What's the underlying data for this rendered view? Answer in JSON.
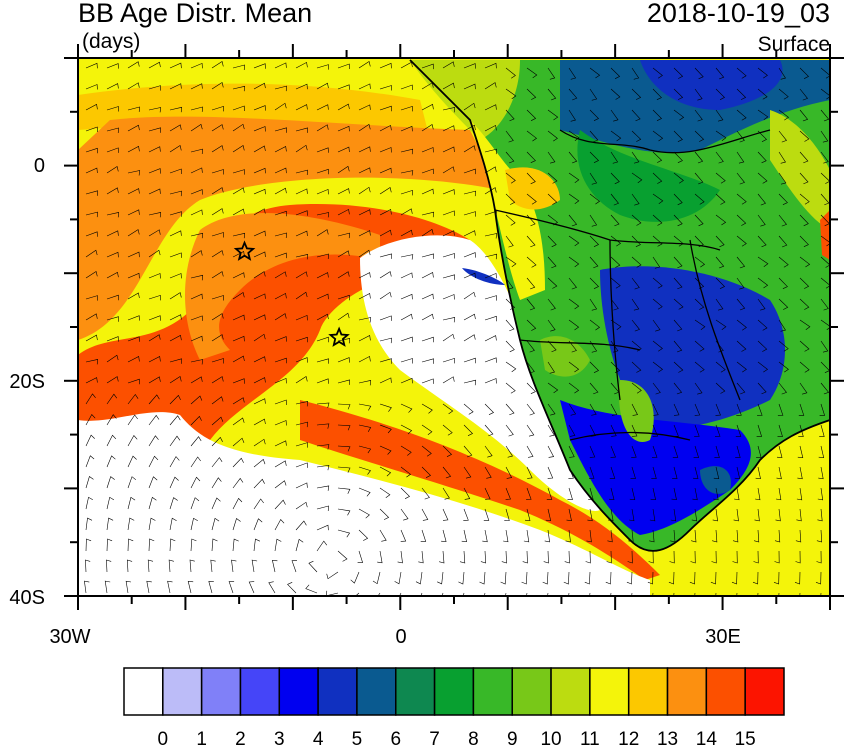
{
  "title": "BB Age Distr. Mean",
  "units": "(days)",
  "datetime": "2018-10-19_03",
  "level": "Surface",
  "lon_ticks": [
    {
      "label": "30W",
      "lon": -30
    },
    {
      "label": "0",
      "lon": 0
    },
    {
      "label": "30E",
      "lon": 30
    }
  ],
  "lat_ticks": [
    {
      "label": "0",
      "lat": 0
    },
    {
      "label": "20S",
      "lat": -20
    },
    {
      "label": "40S",
      "lat": -40
    }
  ],
  "extent": {
    "lon_min": -30,
    "lon_max": 40,
    "lat_min": -40,
    "lat_max": 10
  },
  "colorbar": {
    "labels": [
      "0",
      "1",
      "2",
      "3",
      "4",
      "5",
      "6",
      "7",
      "8",
      "9",
      "10",
      "11",
      "12",
      "13",
      "14",
      "15"
    ],
    "colors": [
      "#ffffff",
      "#bcbcf8",
      "#8080f8",
      "#4545f8",
      "#0000f0",
      "#1030c0",
      "#0a5a90",
      "#0e8850",
      "#08a030",
      "#38b828",
      "#78c818",
      "#bcdc10",
      "#f4f40a",
      "#fcc800",
      "#fc9010",
      "#fc5000",
      "#fc1400"
    ]
  },
  "markers": [
    {
      "name": "star-marker",
      "lon": -14.5,
      "lat": -8
    },
    {
      "name": "star-marker",
      "lon": -5.7,
      "lat": -16
    }
  ]
}
